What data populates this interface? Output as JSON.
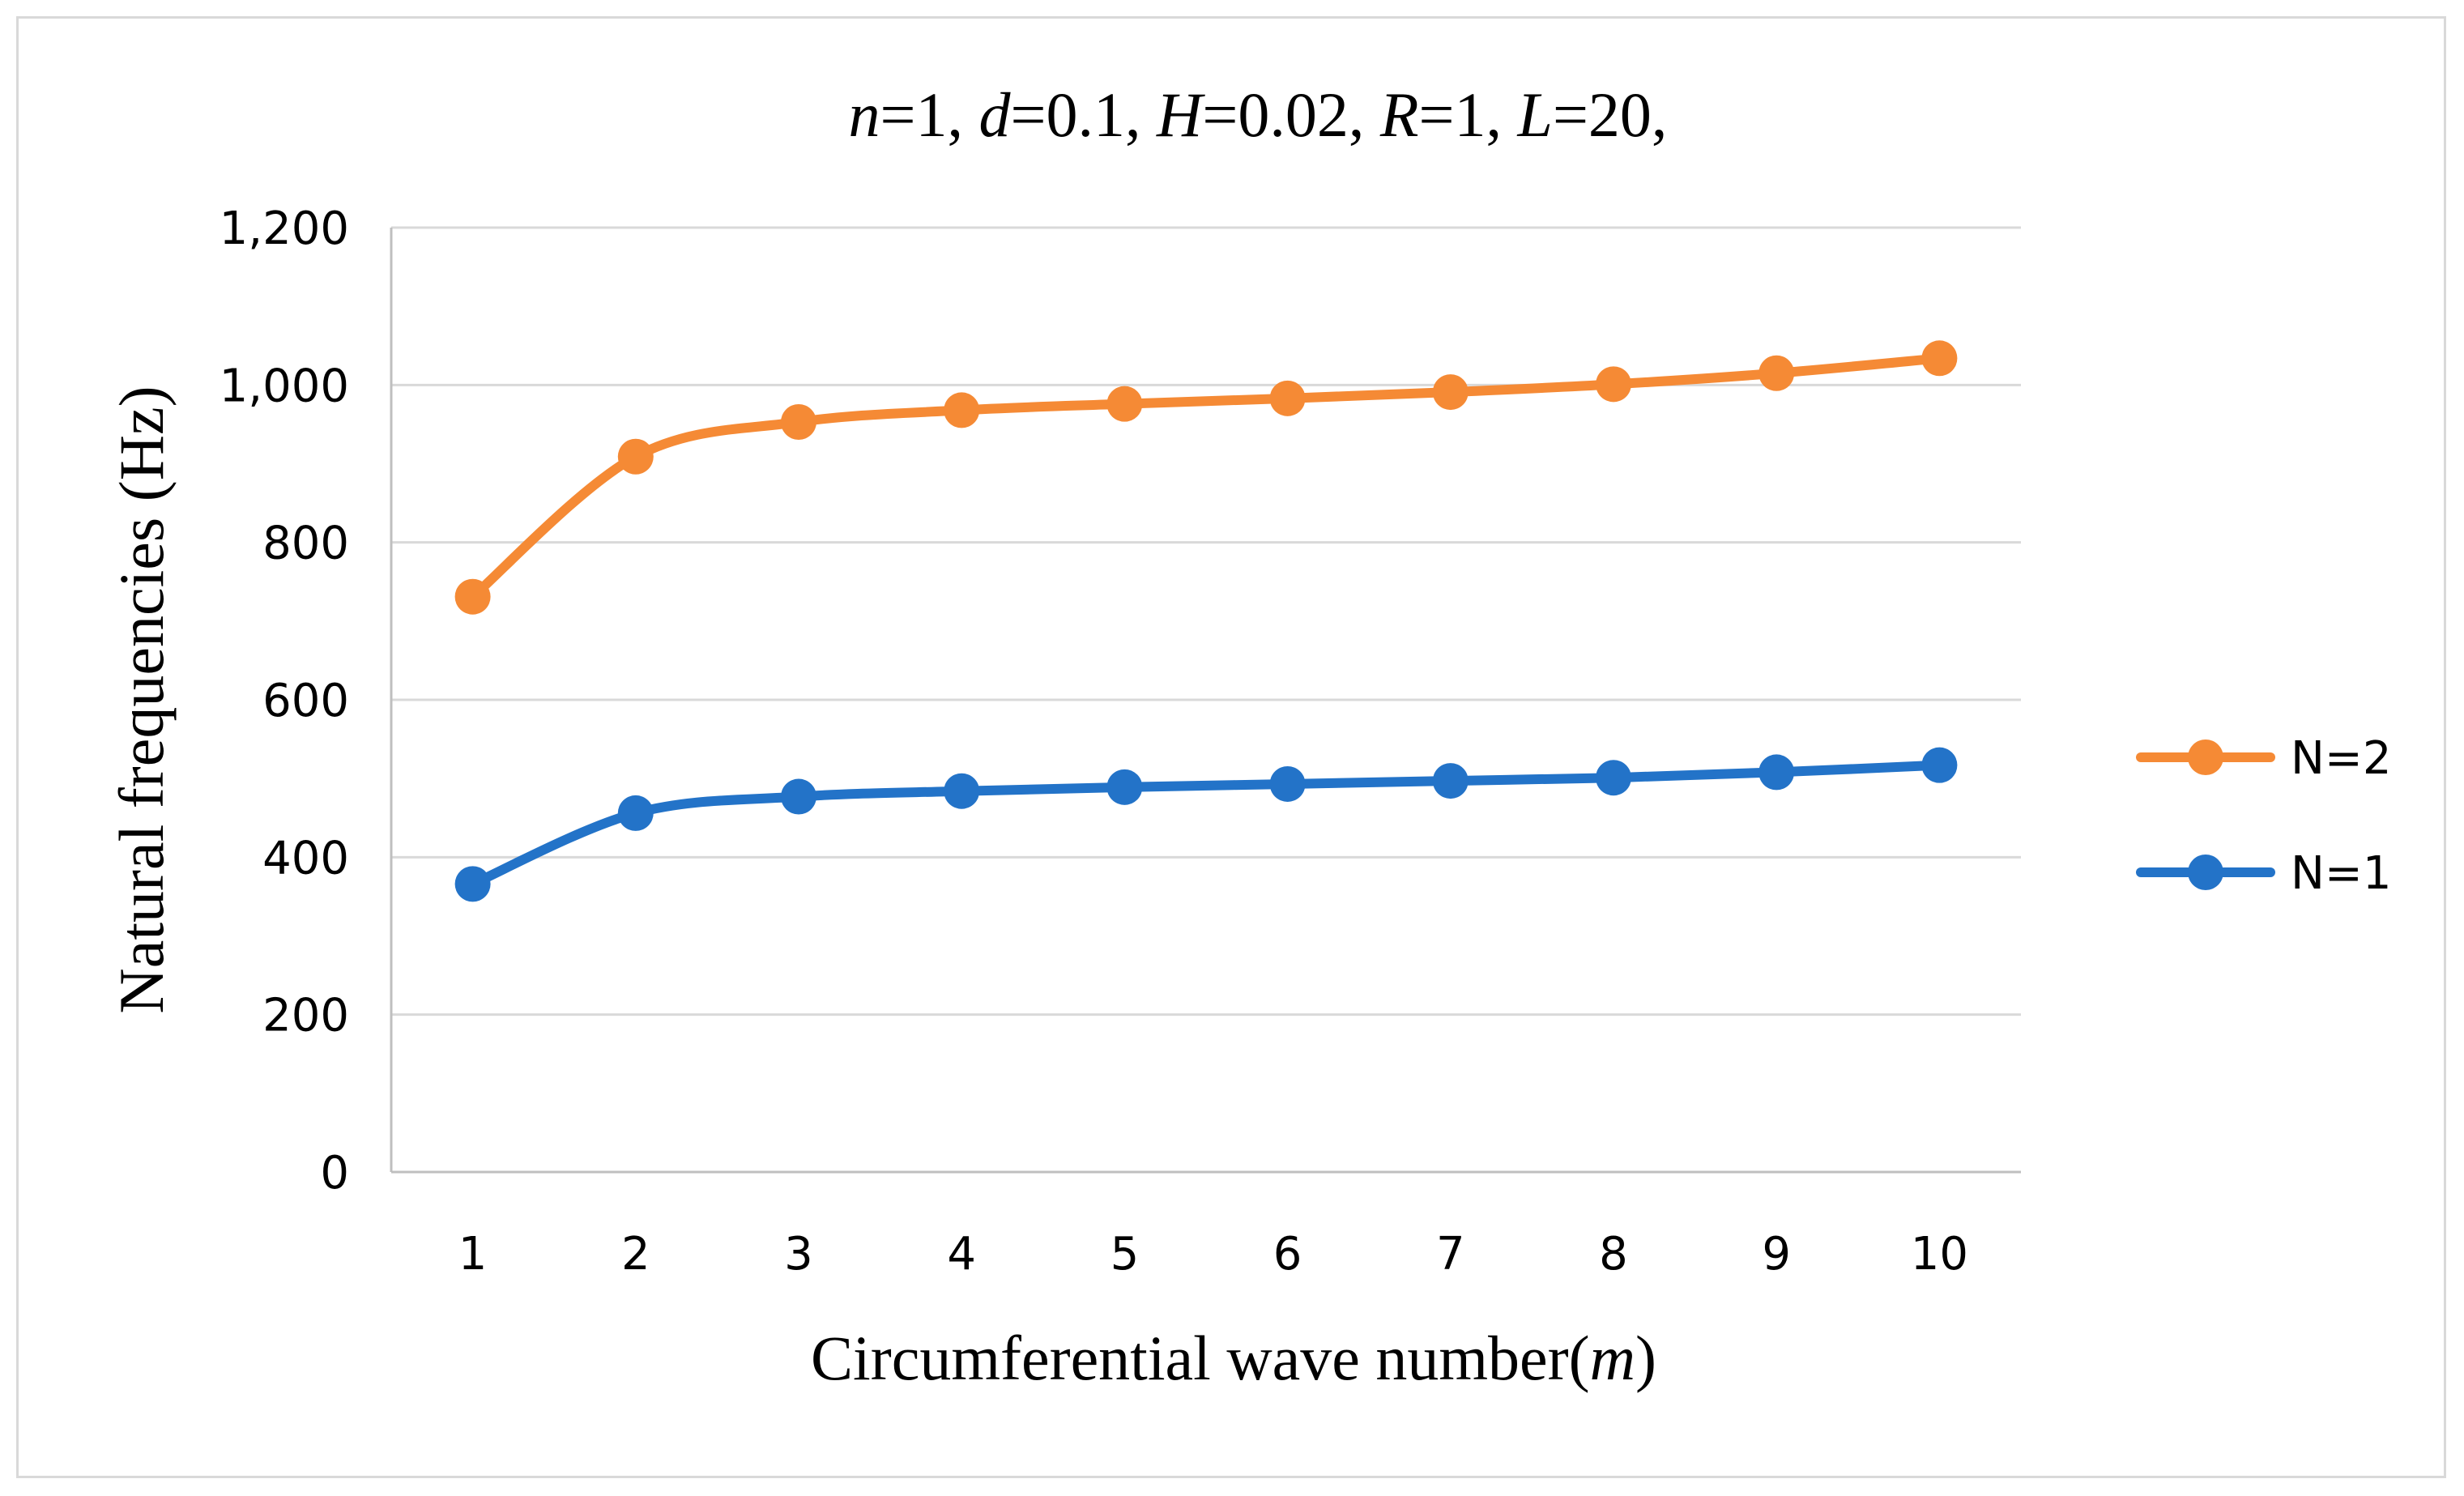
{
  "chart_data": {
    "type": "line",
    "title_parts": [
      {
        "text": "n",
        "italic": true
      },
      {
        "text": "=1, ",
        "italic": false
      },
      {
        "text": "d",
        "italic": true
      },
      {
        "text": "=0.1, ",
        "italic": false
      },
      {
        "text": "H",
        "italic": true
      },
      {
        "text": "=0.02, ",
        "italic": false
      },
      {
        "text": "R",
        "italic": true
      },
      {
        "text": "=1, ",
        "italic": false
      },
      {
        "text": "L",
        "italic": true
      },
      {
        "text": "=20,",
        "italic": false
      }
    ],
    "xlabel_parts": [
      {
        "text": "Circumferential wave number(",
        "italic": false
      },
      {
        "text": "m",
        "italic": true
      },
      {
        "text": ")",
        "italic": false
      }
    ],
    "ylabel": "Natural frequencies (Hz)",
    "categories": [
      "1",
      "2",
      "3",
      "4",
      "5",
      "6",
      "7",
      "8",
      "9",
      "10"
    ],
    "ylim": [
      0,
      1200
    ],
    "yticks": [
      0,
      200,
      400,
      600,
      800,
      1000,
      1200
    ],
    "ytick_labels": [
      "0",
      "200",
      "400",
      "600",
      "800",
      "1,000",
      "1,200"
    ],
    "grid": true,
    "legend_position": "right",
    "smooth": true,
    "series": [
      {
        "name": "N=2",
        "color": "#F58A35",
        "values": [
          731,
          909,
          953,
          968,
          976,
          983,
          991,
          1001,
          1015,
          1034
        ]
      },
      {
        "name": "N=1",
        "color": "#2373C8",
        "values": [
          366,
          456,
          477,
          484,
          489,
          493,
          497,
          501,
          508,
          517
        ]
      }
    ]
  }
}
